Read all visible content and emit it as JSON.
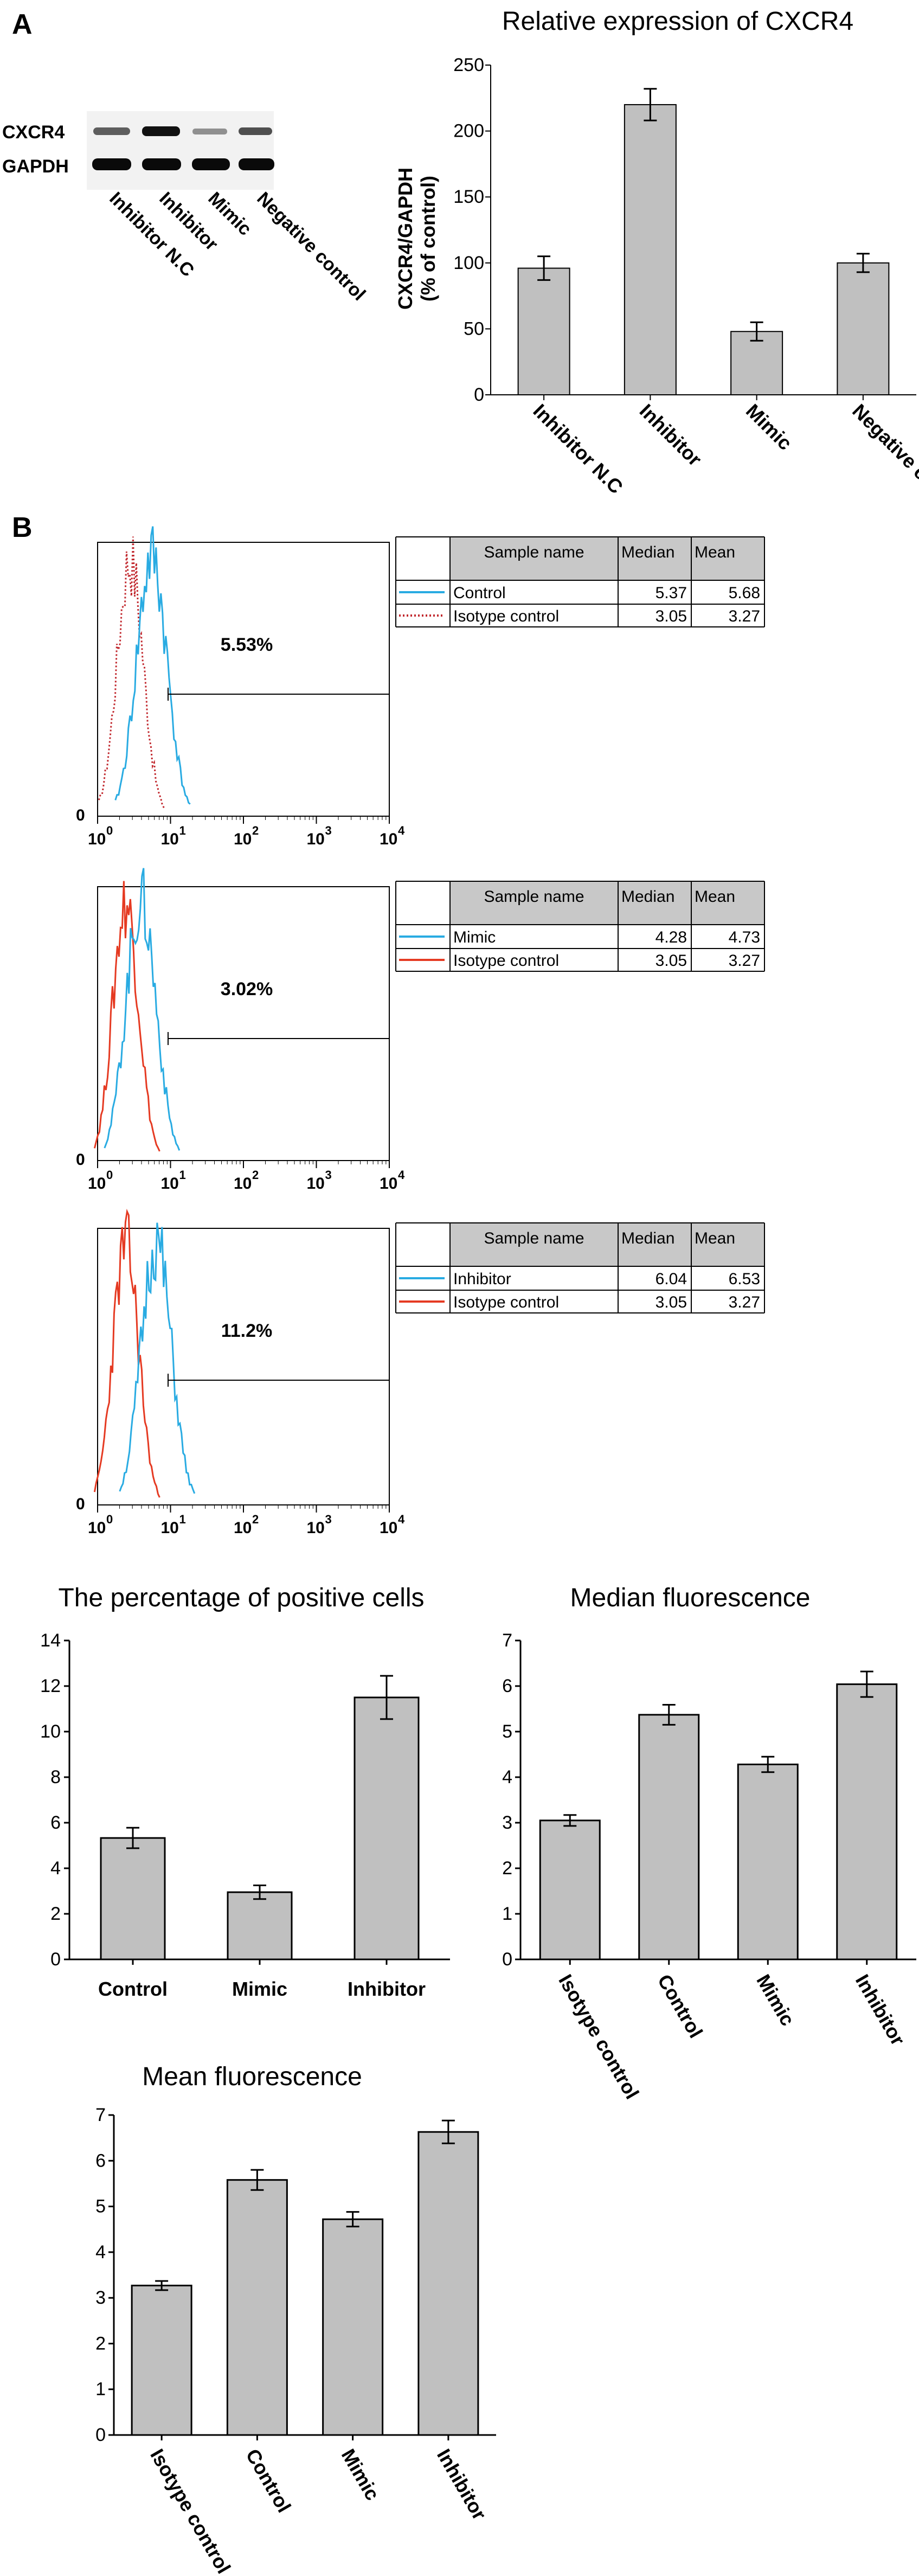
{
  "panels": {
    "a": "A",
    "b": "B"
  },
  "western_blot": {
    "rows": [
      "CXCR4",
      "GAPDH"
    ],
    "lanes": [
      "Inhibitor N.C",
      "Inhibitor",
      "Mimic",
      "Negative control"
    ]
  },
  "flow": [
    {
      "percent": "5.53%",
      "header": [
        "Sample name",
        "Median",
        "Mean"
      ],
      "rows": [
        {
          "name": "Control",
          "median": "5.37",
          "mean": "5.68",
          "color": "#29abe2",
          "style": "solid"
        },
        {
          "name": "Isotype control",
          "median": "3.05",
          "mean": "3.27",
          "color": "#c1272d",
          "style": "dotted"
        }
      ]
    },
    {
      "percent": "3.02%",
      "header": [
        "Sample name",
        "Median",
        "Mean"
      ],
      "rows": [
        {
          "name": "Mimic",
          "median": "4.28",
          "mean": "4.73",
          "color": "#29abe2",
          "style": "solid"
        },
        {
          "name": "Isotype control",
          "median": "3.05",
          "mean": "3.27",
          "color": "#e53a22",
          "style": "solid"
        }
      ]
    },
    {
      "percent": "11.2%",
      "header": [
        "Sample name",
        "Median",
        "Mean"
      ],
      "rows": [
        {
          "name": "Inhibitor",
          "median": "6.04",
          "mean": "6.53",
          "color": "#29abe2",
          "style": "solid"
        },
        {
          "name": "Isotype control",
          "median": "3.05",
          "mean": "3.27",
          "color": "#e53a22",
          "style": "solid"
        }
      ]
    }
  ],
  "flow_axis": {
    "zero": "0",
    "base": "10",
    "exponents": [
      "0",
      "1",
      "2",
      "3",
      "4"
    ]
  },
  "chart_data": [
    {
      "type": "bar",
      "title": "Relative expression of CXCR4",
      "ylabel": "CXCR4/GAPDH\n(% of control)",
      "categories": [
        "Inhibitor N.C",
        "Inhibitor",
        "Mimic",
        "Negative control"
      ],
      "values": [
        96,
        220,
        48,
        100
      ],
      "errors": [
        9,
        12,
        7,
        7
      ],
      "ylim": [
        0,
        250
      ],
      "yticks": [
        0,
        50,
        100,
        150,
        200,
        250
      ]
    },
    {
      "type": "bar",
      "title": "The percentage of positive cells",
      "categories": [
        "Control",
        "Mimic",
        "Inhibitor"
      ],
      "values": [
        5.33,
        2.95,
        11.5
      ],
      "errors": [
        0.45,
        0.3,
        0.95
      ],
      "ylim": [
        0,
        14
      ],
      "yticks": [
        0,
        2,
        4,
        6,
        8,
        10,
        12,
        14
      ]
    },
    {
      "type": "bar",
      "title": "Median fluorescence",
      "categories": [
        "Isotype control",
        "Control",
        "Mimic",
        "Inhibitor"
      ],
      "values": [
        3.05,
        5.37,
        4.28,
        6.04
      ],
      "errors": [
        0.12,
        0.22,
        0.17,
        0.28
      ],
      "ylim": [
        0,
        7
      ],
      "yticks": [
        0,
        1,
        2,
        3,
        4,
        5,
        6,
        7
      ]
    },
    {
      "type": "bar",
      "title": "Mean fluorescence",
      "categories": [
        "Isotype control",
        "Control",
        "Mimic",
        "Inhibitor"
      ],
      "values": [
        3.27,
        5.58,
        4.72,
        6.63
      ],
      "errors": [
        0.1,
        0.22,
        0.16,
        0.25
      ],
      "ylim": [
        0,
        7
      ],
      "yticks": [
        0,
        1,
        2,
        3,
        4,
        5,
        6,
        7
      ]
    }
  ]
}
